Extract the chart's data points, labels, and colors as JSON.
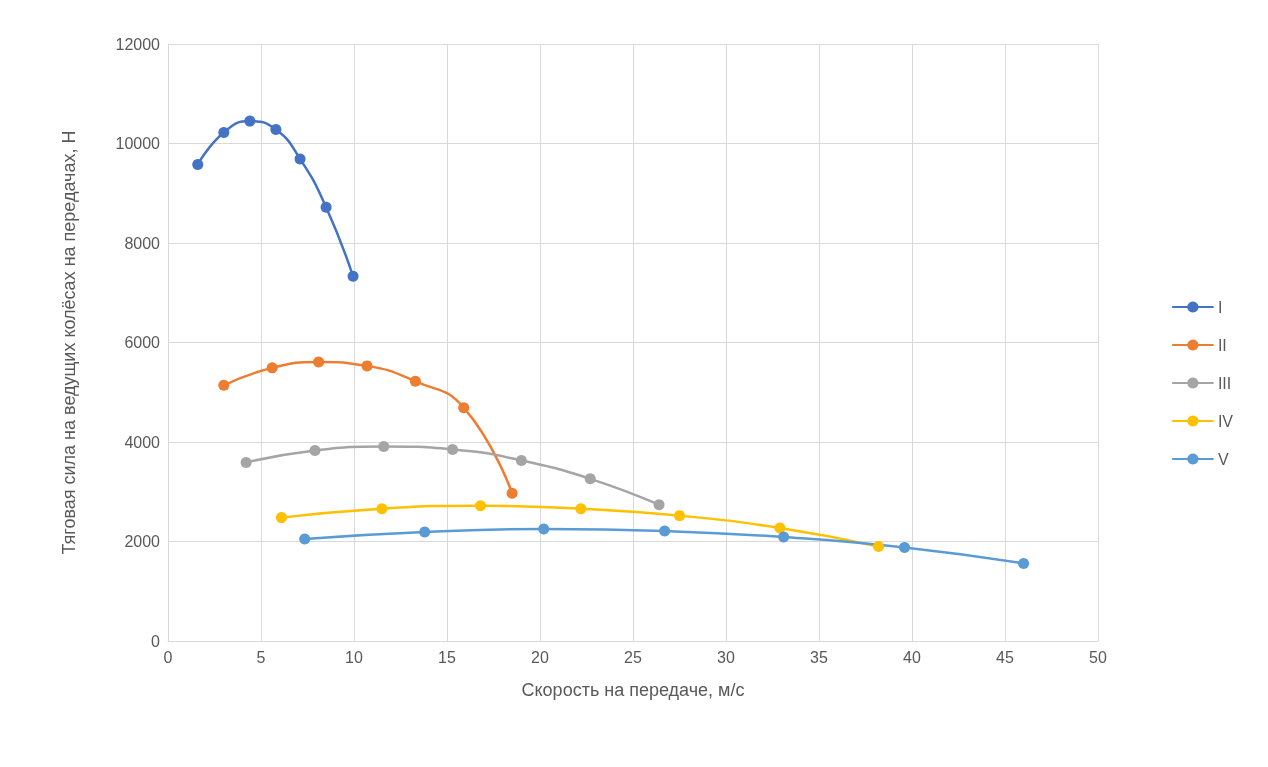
{
  "chart_data": {
    "type": "line",
    "xlabel": "Скорость на передаче, м/с",
    "ylabel": "Тяговая сила на ведущих колёсах на передачах, Н",
    "xlim": [
      0,
      50
    ],
    "xticks": [
      0,
      5,
      10,
      15,
      20,
      25,
      30,
      35,
      40,
      45,
      50
    ],
    "ylim": [
      0,
      12000
    ],
    "yticks": [
      0,
      2000,
      4000,
      6000,
      8000,
      10000,
      12000
    ],
    "grid": true,
    "legend": "right",
    "marker": "circle",
    "line_style": "solid",
    "series": [
      {
        "name": "I",
        "color": "#4472c4",
        "x": [
          1.6,
          3.0,
          4.4,
          5.8,
          7.1,
          8.5,
          9.95
        ],
        "values": [
          9580,
          10220,
          10450,
          10280,
          9690,
          8720,
          7330
        ]
      },
      {
        "name": "II",
        "color": "#ed7d31",
        "x": [
          3.0,
          5.6,
          8.1,
          10.7,
          13.3,
          15.9,
          18.5
        ],
        "values": [
          5140,
          5490,
          5610,
          5530,
          5220,
          4690,
          2970
        ]
      },
      {
        "name": "III",
        "color": "#a5a5a5",
        "x": [
          4.2,
          7.9,
          11.6,
          15.3,
          19.0,
          22.7,
          26.4
        ],
        "values": [
          3590,
          3830,
          3910,
          3850,
          3630,
          3260,
          2740
        ]
      },
      {
        "name": "IV",
        "color": "#ffc000",
        "x": [
          6.1,
          11.5,
          16.8,
          22.2,
          27.5,
          32.9,
          38.2
        ],
        "values": [
          2480,
          2660,
          2720,
          2660,
          2520,
          2270,
          1900
        ]
      },
      {
        "name": "V",
        "color": "#5b9bd5",
        "x": [
          7.35,
          13.8,
          20.2,
          26.7,
          33.1,
          39.6,
          46.0
        ],
        "values": [
          2050,
          2190,
          2250,
          2210,
          2090,
          1880,
          1560
        ]
      }
    ]
  }
}
